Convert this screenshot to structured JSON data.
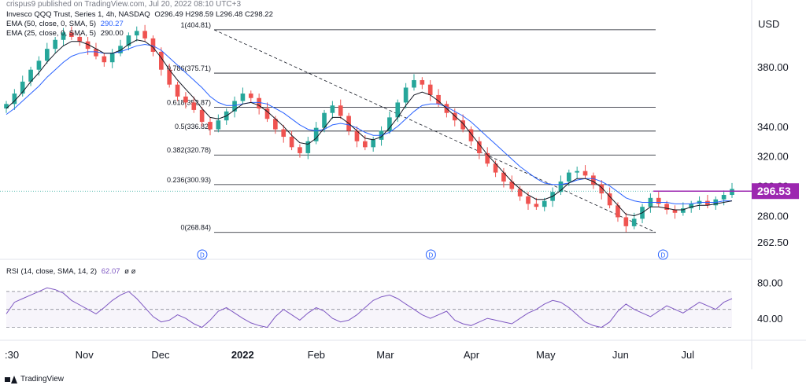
{
  "header": {
    "published": "crispus9 published on TradingView.com, Jul 20, 2022 08:10 UTC+3",
    "instrument": "Invesco QQQ Trust, Series 1, 4h, NASDAQ",
    "ohlc": "O296.49 H298.59 L296.48 C298.22",
    "ema50_label": "EMA (50, close, 0, SMA, 5)",
    "ema50_value": "290.27",
    "ema25_label": "EMA (25, close, 0, SMA, 5)",
    "ema25_value": "290.00",
    "rsi_label": "RSI (14, close, SMA, 14, 2)",
    "rsi_value": "62.07",
    "rsi_extra": "ø ø"
  },
  "footer": {
    "brand": "TradingView"
  },
  "colors": {
    "up": "#26a69a",
    "down": "#ef5350",
    "ema50": "#2962ff",
    "ema25": "#131722",
    "rsi": "#7e57c2",
    "price_label": "#9c27b0",
    "resistance": "#9c27b0"
  },
  "icons": {
    "dividend_marker": "dividend-d-icon",
    "logo": "tradingview-logo-icon"
  },
  "chart_data": {
    "type": "candlestick",
    "currency": "USD",
    "ylim": [
      255,
      410
    ],
    "y_ticks": [
      "380.00",
      "340.00",
      "320.00",
      "300.00",
      "280.00",
      "262.50"
    ],
    "y_tick_values": [
      380,
      340,
      320,
      300,
      280,
      262.5
    ],
    "x_ticks": [
      ":30",
      "Nov",
      "Dec",
      "2022",
      "Feb",
      "Mar",
      "Apr",
      "May",
      "Jun",
      "Jul"
    ],
    "last_price": "296.53",
    "resistance_level": 296.53,
    "fibonacci": {
      "high": 404.81,
      "low": 268.84,
      "levels": [
        {
          "label": "1(404.81)",
          "value": 404.81
        },
        {
          "label": "0.786(375.71)",
          "value": 375.71
        },
        {
          "label": "0.618(352.87)",
          "value": 352.87
        },
        {
          "label": "0.5(336.82)",
          "value": 336.82
        },
        {
          "label": "0.382(320.78)",
          "value": 320.78
        },
        {
          "label": "0.236(300.93)",
          "value": 300.93
        },
        {
          "label": "0(268.84)",
          "value": 268.84
        }
      ]
    },
    "close_series": [
      355,
      362,
      370,
      378,
      384,
      392,
      398,
      403,
      400,
      397,
      392,
      387,
      383,
      389,
      394,
      401,
      404,
      399,
      390,
      378,
      368,
      360,
      356,
      351,
      343,
      338,
      344,
      350,
      357,
      362,
      359,
      352,
      345,
      338,
      333,
      326,
      322,
      330,
      339,
      349,
      354,
      347,
      337,
      330,
      326,
      331,
      337,
      346,
      356,
      366,
      371,
      368,
      361,
      355,
      349,
      344,
      338,
      330,
      322,
      315,
      309,
      303,
      298,
      293,
      288,
      286,
      290,
      296,
      303,
      309,
      310,
      307,
      301,
      295,
      287,
      279,
      273,
      278,
      286,
      292,
      288,
      284,
      282,
      285,
      288,
      290,
      287,
      291,
      294,
      298
    ],
    "ema25_series": [
      352,
      357,
      363,
      370,
      376,
      383,
      389,
      394,
      397,
      397,
      395,
      392,
      389,
      389,
      391,
      395,
      398,
      397,
      393,
      386,
      378,
      371,
      365,
      359,
      352,
      346,
      345,
      347,
      351,
      355,
      356,
      354,
      350,
      345,
      340,
      334,
      329,
      328,
      332,
      339,
      346,
      346,
      342,
      337,
      332,
      331,
      333,
      339,
      346,
      354,
      361,
      363,
      361,
      357,
      352,
      347,
      342,
      335,
      328,
      321,
      315,
      309,
      303,
      298,
      294,
      291,
      291,
      293,
      297,
      302,
      305,
      305,
      303,
      299,
      293,
      287,
      281,
      280,
      282,
      286,
      286,
      285,
      284,
      284,
      286,
      287,
      287,
      288,
      289,
      290
    ],
    "ema50_series": [
      348,
      352,
      357,
      362,
      367,
      373,
      378,
      383,
      387,
      389,
      390,
      390,
      389,
      389,
      390,
      392,
      394,
      395,
      394,
      391,
      386,
      381,
      376,
      371,
      366,
      360,
      356,
      354,
      354,
      355,
      356,
      356,
      355,
      352,
      349,
      345,
      341,
      338,
      337,
      338,
      341,
      342,
      341,
      339,
      336,
      334,
      334,
      336,
      340,
      345,
      350,
      354,
      355,
      355,
      353,
      350,
      347,
      343,
      338,
      333,
      328,
      323,
      318,
      313,
      309,
      305,
      302,
      301,
      301,
      302,
      304,
      305,
      305,
      303,
      300,
      296,
      292,
      290,
      289,
      289,
      289,
      289,
      288,
      288,
      288,
      289,
      289,
      289,
      290,
      290
    ],
    "rsi": {
      "ylim": [
        20,
        90
      ],
      "y_ticks": [
        "80.00",
        "40.00"
      ],
      "y_tick_values": [
        80,
        40
      ],
      "overbought": 70,
      "middle": 50,
      "oversold": 30,
      "values": [
        45,
        58,
        62,
        66,
        70,
        74,
        72,
        68,
        60,
        55,
        50,
        45,
        52,
        60,
        66,
        70,
        62,
        52,
        42,
        36,
        38,
        44,
        40,
        34,
        30,
        38,
        48,
        52,
        46,
        40,
        35,
        32,
        30,
        42,
        50,
        44,
        38,
        46,
        52,
        48,
        40,
        36,
        38,
        44,
        52,
        60,
        64,
        66,
        62,
        56,
        50,
        44,
        40,
        44,
        48,
        38,
        34,
        32,
        36,
        40,
        38,
        36,
        34,
        40,
        46,
        50,
        56,
        60,
        58,
        52,
        44,
        36,
        32,
        30,
        36,
        48,
        56,
        50,
        46,
        42,
        48,
        54,
        50,
        46,
        52,
        58,
        54,
        50,
        58,
        62
      ]
    }
  }
}
